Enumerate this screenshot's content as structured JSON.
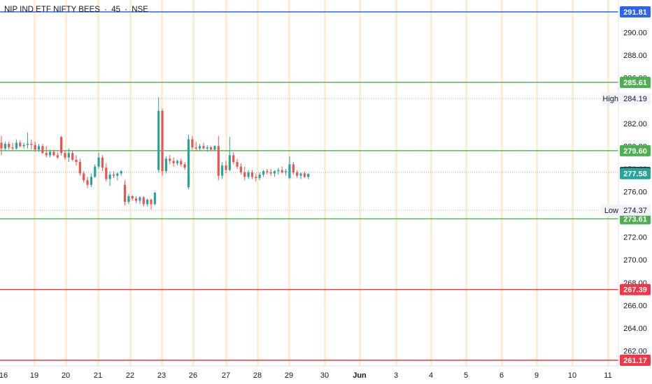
{
  "header": {
    "symbol": "NIP IND ETF NIFTY BEES",
    "separator1": "·",
    "interval": "45",
    "separator2": "·",
    "exchange": "NSE"
  },
  "colors": {
    "up": "#26a69a",
    "down": "#ef5350",
    "blue_line": "#2962ff",
    "green_line": "#4caf50",
    "red_line": "#f23645",
    "session_band": "#ffe0b2",
    "axis_text": "#131722"
  },
  "chart_data": {
    "type": "candlestick",
    "y_range": [
      260.8,
      293.2
    ],
    "y_ticks": [
      262,
      264,
      266,
      268,
      270,
      272,
      274,
      276,
      278,
      280,
      282,
      284,
      286,
      288,
      290
    ],
    "y_tick_labels": [
      "262.00",
      "264.00",
      "266.00",
      "268.00",
      "270.00",
      "272.00",
      "274.00",
      "276.00",
      "278.00",
      "280.00",
      "282.00",
      "284.00",
      "286.00",
      "288.00",
      "290.00"
    ],
    "x_labels": [
      "16",
      "19",
      "20",
      "21",
      "22",
      "23",
      "26",
      "27",
      "28",
      "29",
      "30",
      "Jun",
      "3",
      "4",
      "5",
      "6",
      "9",
      "10",
      "11"
    ],
    "horizontal_levels": [
      {
        "price": 291.81,
        "label": "291.81",
        "color": "blue"
      },
      {
        "price": 285.61,
        "label": "285.61",
        "color": "green"
      },
      {
        "price": 279.6,
        "label": "279.60",
        "color": "green"
      },
      {
        "price": 273.61,
        "label": "273.61",
        "color": "green"
      },
      {
        "price": 267.39,
        "label": "267.39",
        "color": "red"
      },
      {
        "price": 261.17,
        "label": "261.17",
        "color": "red"
      }
    ],
    "high": {
      "label": "High",
      "value": "284.19",
      "price": 284.19
    },
    "low": {
      "label": "Low",
      "value": "274.37",
      "price": 274.37
    },
    "last_price": {
      "value": "277.58",
      "price": 277.58
    },
    "prev_close": {
      "value": "277.69",
      "price": 277.69
    },
    "candles": [
      [
        280.3,
        280.9,
        279.2,
        279.8
      ],
      [
        279.8,
        280.4,
        279.6,
        280.2
      ],
      [
        280.2,
        280.4,
        279.7,
        279.9
      ],
      [
        279.9,
        280.3,
        279.6,
        279.8
      ],
      [
        279.8,
        280.6,
        279.7,
        280.3
      ],
      [
        280.3,
        280.5,
        279.9,
        280.0
      ],
      [
        280.0,
        280.3,
        279.8,
        280.1
      ],
      [
        280.1,
        281.2,
        279.8,
        280.2
      ],
      [
        280.2,
        280.6,
        279.7,
        280.1
      ],
      [
        280.1,
        280.4,
        279.5,
        279.7
      ],
      [
        279.7,
        280.2,
        279.5,
        280.0
      ],
      [
        280.0,
        280.2,
        279.3,
        279.4
      ],
      [
        279.4,
        280.0,
        279.0,
        279.2
      ],
      [
        279.2,
        279.7,
        279.0,
        279.5
      ],
      [
        279.5,
        279.7,
        279.1,
        279.2
      ],
      [
        279.2,
        279.5,
        278.9,
        279.0
      ],
      [
        280.8,
        280.9,
        279.2,
        279.4
      ],
      [
        279.4,
        279.6,
        278.8,
        279.0
      ],
      [
        279.0,
        279.8,
        278.6,
        279.4
      ],
      [
        279.4,
        279.6,
        278.7,
        278.8
      ],
      [
        278.8,
        279.2,
        278.3,
        278.6
      ],
      [
        278.6,
        278.9,
        277.4,
        277.6
      ],
      [
        277.6,
        277.8,
        276.8,
        277.0
      ],
      [
        277.0,
        277.3,
        276.3,
        276.6
      ],
      [
        276.6,
        277.6,
        276.4,
        277.3
      ],
      [
        277.3,
        278.4,
        277.2,
        278.2
      ],
      [
        278.2,
        279.4,
        278.0,
        279.0
      ],
      [
        279.0,
        279.2,
        277.8,
        278.1
      ],
      [
        278.1,
        278.5,
        276.9,
        277.1
      ],
      [
        277.1,
        277.8,
        276.5,
        277.5
      ],
      [
        277.5,
        277.8,
        277.2,
        277.4
      ],
      [
        277.4,
        277.7,
        277.0,
        277.6
      ],
      [
        277.6,
        277.9,
        277.4,
        277.8
      ],
      [
        276.6,
        277.0,
        274.8,
        275.1
      ],
      [
        275.1,
        275.8,
        274.9,
        275.6
      ],
      [
        275.6,
        275.7,
        275.2,
        275.4
      ],
      [
        275.4,
        275.6,
        275.0,
        275.2
      ],
      [
        275.2,
        275.6,
        274.9,
        275.5
      ],
      [
        275.5,
        275.6,
        274.7,
        274.9
      ],
      [
        274.9,
        275.4,
        274.7,
        275.3
      ],
      [
        275.3,
        275.4,
        274.4,
        274.9
      ],
      [
        274.9,
        276.0,
        274.8,
        275.9
      ],
      [
        277.9,
        284.3,
        277.7,
        283.1
      ],
      [
        283.1,
        283.3,
        277.4,
        277.8
      ],
      [
        277.8,
        279.1,
        277.6,
        278.9
      ],
      [
        278.9,
        279.2,
        278.4,
        278.7
      ],
      [
        278.7,
        279.0,
        278.2,
        278.5
      ],
      [
        278.5,
        278.8,
        278.3,
        278.7
      ],
      [
        278.7,
        278.9,
        278.2,
        278.4
      ],
      [
        278.4,
        278.6,
        277.9,
        278.1
      ],
      [
        276.4,
        281.0,
        276.2,
        280.6
      ],
      [
        280.6,
        280.9,
        279.7,
        279.9
      ],
      [
        279.9,
        280.4,
        279.6,
        279.8
      ],
      [
        279.8,
        280.2,
        279.6,
        280.0
      ],
      [
        280.0,
        280.3,
        279.7,
        279.8
      ],
      [
        279.8,
        280.1,
        279.5,
        279.9
      ],
      [
        279.9,
        280.0,
        279.6,
        279.7
      ],
      [
        279.7,
        280.1,
        279.6,
        280.0
      ],
      [
        280.0,
        280.9,
        277.0,
        277.4
      ],
      [
        277.4,
        278.6,
        277.1,
        278.3
      ],
      [
        278.3,
        278.7,
        277.6,
        277.9
      ],
      [
        277.9,
        280.8,
        277.8,
        279.2
      ],
      [
        279.2,
        279.5,
        278.4,
        278.6
      ],
      [
        278.6,
        278.9,
        278.0,
        278.2
      ],
      [
        278.2,
        278.5,
        277.5,
        277.7
      ],
      [
        277.7,
        278.2,
        277.0,
        277.3
      ],
      [
        277.3,
        277.9,
        277.1,
        277.7
      ],
      [
        277.7,
        277.9,
        277.1,
        277.3
      ],
      [
        277.3,
        277.6,
        276.9,
        277.2
      ],
      [
        277.2,
        277.7,
        277.0,
        277.5
      ],
      [
        277.5,
        277.9,
        277.3,
        277.8
      ],
      [
        277.8,
        278.0,
        277.5,
        277.7
      ],
      [
        277.7,
        278.0,
        277.4,
        277.6
      ],
      [
        277.6,
        277.9,
        277.3,
        277.8
      ],
      [
        277.8,
        278.1,
        277.5,
        277.9
      ],
      [
        277.9,
        278.2,
        277.6,
        277.7
      ],
      [
        277.7,
        278.0,
        277.4,
        277.8
      ],
      [
        277.2,
        279.1,
        277.1,
        278.4
      ],
      [
        278.4,
        278.6,
        277.5,
        277.7
      ],
      [
        277.7,
        277.9,
        277.2,
        277.4
      ],
      [
        277.4,
        277.7,
        277.1,
        277.6
      ],
      [
        277.6,
        277.8,
        277.2,
        277.3
      ],
      [
        277.3,
        277.6,
        277.1,
        277.58
      ]
    ]
  }
}
